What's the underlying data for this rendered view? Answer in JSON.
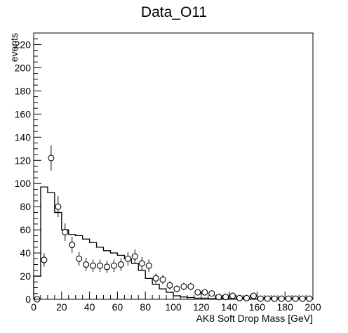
{
  "chart_data": {
    "type": "line",
    "title": "Data_O11",
    "xlabel": "AK8 Soft Drop Mass [GeV]",
    "ylabel": "events",
    "xlim": [
      0,
      200
    ],
    "ylim": [
      0,
      230
    ],
    "xticks": [
      0,
      20,
      40,
      60,
      80,
      100,
      120,
      140,
      160,
      180,
      200
    ],
    "yticks": [
      0,
      20,
      40,
      60,
      80,
      100,
      120,
      140,
      160,
      180,
      200,
      220
    ],
    "grid": false,
    "bin_width": 5,
    "colors": {
      "line": "#000000",
      "marker_fill": "#ffffff"
    },
    "series": [
      {
        "style": "step-histogram",
        "values": [
          20,
          97,
          92,
          75,
          60,
          56,
          55,
          52,
          49,
          45,
          42,
          40,
          38,
          35,
          31,
          25,
          18,
          13,
          9,
          6,
          3,
          2,
          1.5,
          1,
          1,
          0.5,
          0.5,
          0.5,
          0.3,
          0.3,
          0.3,
          0.2,
          0.2,
          0.2,
          0.1,
          0.1,
          0.1,
          0.1,
          0.1,
          0.1
        ]
      },
      {
        "style": "points-with-errors",
        "points": [
          {
            "x": 2.5,
            "y": 0,
            "err": 0
          },
          {
            "x": 7.5,
            "y": 34,
            "err": 5.8
          },
          {
            "x": 12.5,
            "y": 122,
            "err": 11
          },
          {
            "x": 17.5,
            "y": 80,
            "err": 9
          },
          {
            "x": 22.5,
            "y": 58,
            "err": 7.6
          },
          {
            "x": 27.5,
            "y": 47,
            "err": 6.9
          },
          {
            "x": 32.5,
            "y": 35,
            "err": 5.9
          },
          {
            "x": 37.5,
            "y": 30,
            "err": 5.5
          },
          {
            "x": 42.5,
            "y": 29,
            "err": 5.4
          },
          {
            "x": 47.5,
            "y": 29,
            "err": 5.4
          },
          {
            "x": 52.5,
            "y": 28,
            "err": 5.3
          },
          {
            "x": 57.5,
            "y": 29,
            "err": 5.4
          },
          {
            "x": 62.5,
            "y": 30,
            "err": 5.5
          },
          {
            "x": 67.5,
            "y": 35,
            "err": 5.9
          },
          {
            "x": 72.5,
            "y": 37,
            "err": 6.1
          },
          {
            "x": 77.5,
            "y": 31,
            "err": 5.6
          },
          {
            "x": 82.5,
            "y": 29,
            "err": 5.4
          },
          {
            "x": 87.5,
            "y": 18,
            "err": 4.2
          },
          {
            "x": 92.5,
            "y": 17,
            "err": 4.1
          },
          {
            "x": 97.5,
            "y": 12,
            "err": 3.5
          },
          {
            "x": 102.5,
            "y": 9,
            "err": 3
          },
          {
            "x": 107.5,
            "y": 11,
            "err": 3.3
          },
          {
            "x": 112.5,
            "y": 11,
            "err": 3.3
          },
          {
            "x": 117.5,
            "y": 6,
            "err": 2.4
          },
          {
            "x": 122.5,
            "y": 6,
            "err": 2.4
          },
          {
            "x": 127.5,
            "y": 5,
            "err": 2.2
          },
          {
            "x": 132.5,
            "y": 2,
            "err": 1.4
          },
          {
            "x": 137.5,
            "y": 2,
            "err": 1.4
          },
          {
            "x": 142.5,
            "y": 3,
            "err": 1.7
          },
          {
            "x": 147.5,
            "y": 1,
            "err": 1
          },
          {
            "x": 152.5,
            "y": 1,
            "err": 1
          },
          {
            "x": 157.5,
            "y": 3,
            "err": 1.7
          },
          {
            "x": 162.5,
            "y": 0.5,
            "err": 0.7
          },
          {
            "x": 167.5,
            "y": 0.5,
            "err": 0.7
          },
          {
            "x": 172.5,
            "y": 0.5,
            "err": 0.7
          },
          {
            "x": 177.5,
            "y": 0.5,
            "err": 0.7
          },
          {
            "x": 182.5,
            "y": 0.5,
            "err": 0.7
          },
          {
            "x": 187.5,
            "y": 0.5,
            "err": 0.7
          },
          {
            "x": 192.5,
            "y": 0.5,
            "err": 0.7
          },
          {
            "x": 197.5,
            "y": 0.5,
            "err": 0.7
          }
        ]
      }
    ]
  }
}
